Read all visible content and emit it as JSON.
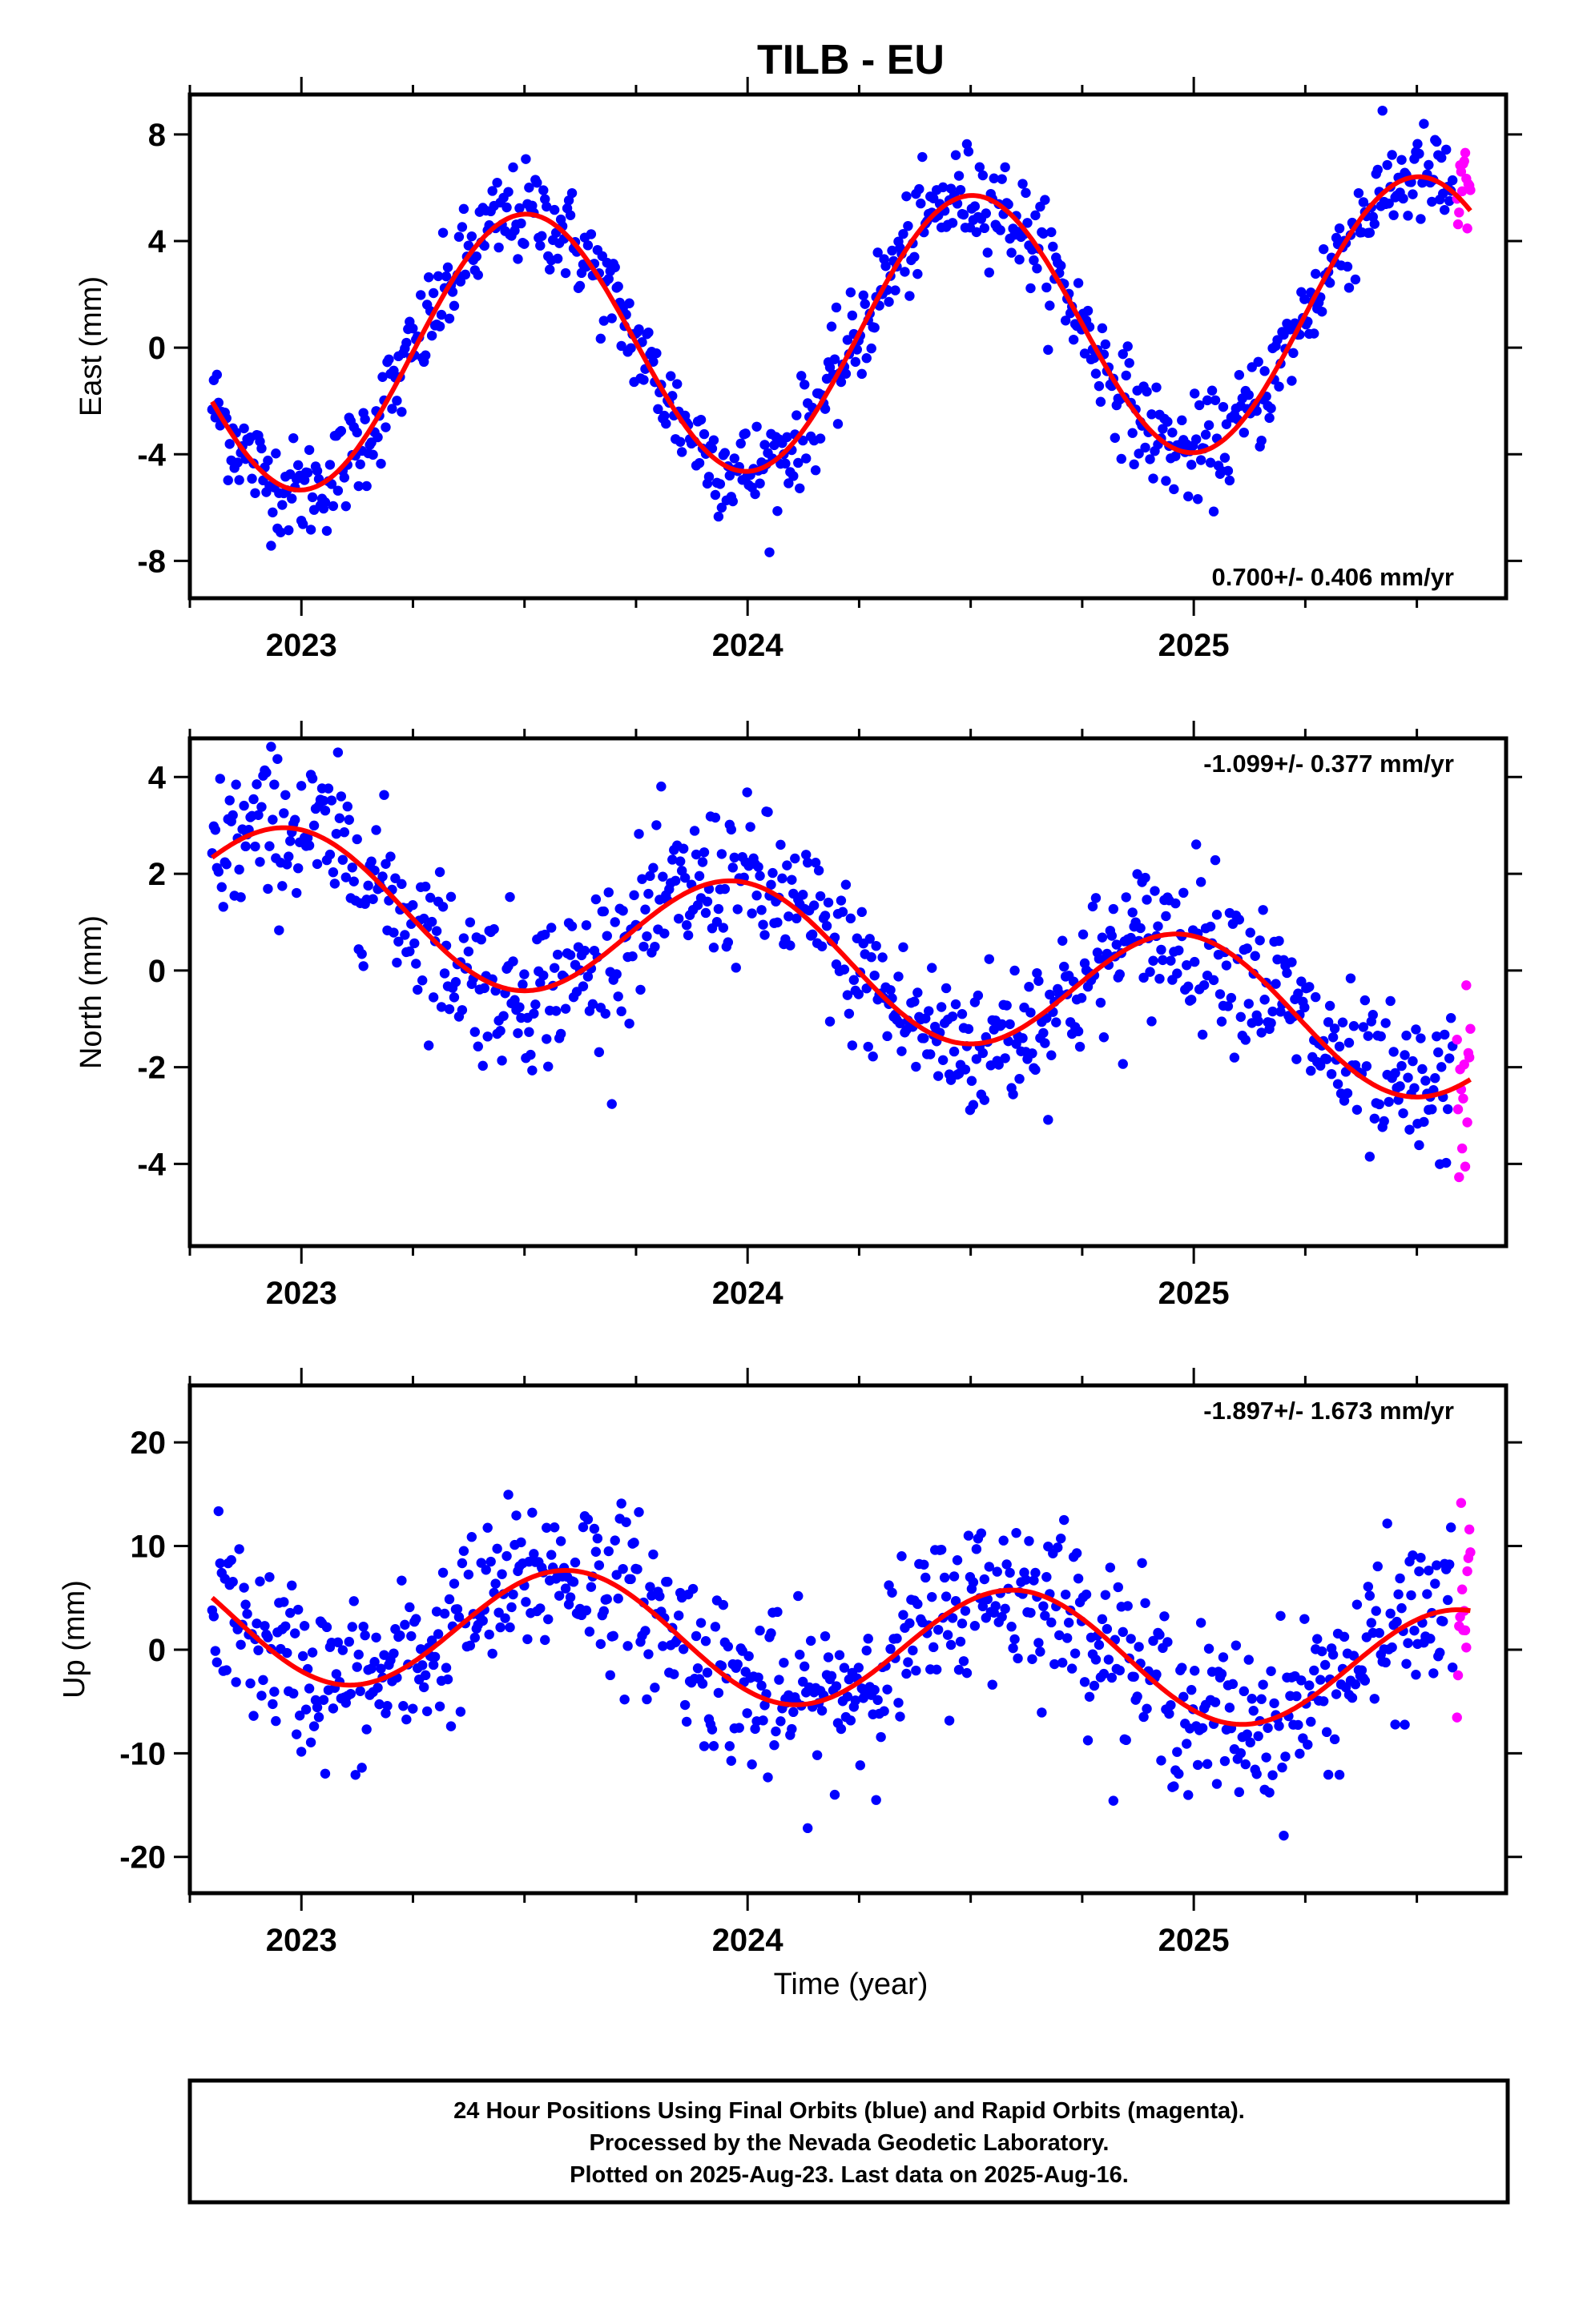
{
  "title": "TILB - EU",
  "x_axis_label": "Time (year)",
  "footer_lines": [
    "24 Hour Positions Using Final Orbits (blue) and Rapid Orbits (magenta).",
    "Processed by the Nevada Geodetic Laboratory.",
    "Plotted on 2025-Aug-23. Last data on 2025-Aug-16."
  ],
  "colors": {
    "final_orbits": "#0000ff",
    "rapid_orbits": "#ff00ff",
    "fit": "#ff0000",
    "frame": "#000000"
  },
  "chart_data": [
    {
      "type": "scatter",
      "ylabel": "East (mm)",
      "xlabel": "",
      "xlim": [
        2022.75,
        2025.7
      ],
      "ylim": [
        -9.4,
        9.5
      ],
      "x_ticks": [
        2023,
        2024,
        2025
      ],
      "x_tick_labels": [
        "2023",
        "2024",
        "2025"
      ],
      "y_ticks": [
        -8,
        -4,
        0,
        4,
        8
      ],
      "y_tick_labels": [
        "-8",
        "-4",
        "0",
        "4",
        "8"
      ],
      "rate_label": "0.700+/- 0.406 mm/yr",
      "rate_position": "bottom-right",
      "fit": {
        "rate": 0.7,
        "offset": 0.5,
        "annual_amp": 5.0,
        "annual_peak": 2023.5,
        "semi_amp": 0.0,
        "semi_peak": 2023.0
      },
      "noise_sd": 0.95,
      "series": [
        {
          "name": "Final Orbits",
          "x_start": 2022.8,
          "x_end": 2025.58,
          "count": 780,
          "color": "#0000ff"
        },
        {
          "name": "Rapid Orbits",
          "x_start": 2025.59,
          "x_end": 2025.62,
          "count": 14,
          "color": "#ff00ff"
        },
        {
          "name": "Fit",
          "color": "#ff0000"
        }
      ]
    },
    {
      "type": "scatter",
      "ylabel": "North (mm)",
      "xlabel": "",
      "xlim": [
        2022.75,
        2025.7
      ],
      "ylim": [
        -5.7,
        4.8
      ],
      "x_ticks": [
        2023,
        2024,
        2025
      ],
      "x_tick_labels": [
        "2023",
        "2024",
        "2025"
      ],
      "y_ticks": [
        -4,
        -2,
        0,
        2,
        4
      ],
      "y_tick_labels": [
        "-4",
        "-2",
        "0",
        "2",
        "4"
      ],
      "rate_label": "-1.099+/- 0.377 mm/yr",
      "rate_position": "top-right",
      "fit": {
        "rate": -1.099,
        "offset": 0.2,
        "annual_amp": 1.4,
        "annual_peak": 2022.98,
        "semi_amp": 0.0,
        "semi_peak": 2023.0
      },
      "noise_sd": 0.8,
      "series": [
        {
          "name": "Final Orbits",
          "x_start": 2022.8,
          "x_end": 2025.58,
          "count": 780,
          "color": "#0000ff"
        },
        {
          "name": "Rapid Orbits",
          "x_start": 2025.59,
          "x_end": 2025.62,
          "count": 14,
          "color": "#ff00ff"
        },
        {
          "name": "Fit",
          "color": "#ff0000"
        }
      ]
    },
    {
      "type": "scatter",
      "ylabel": "Up (mm)",
      "xlabel": "Time (year)",
      "xlim": [
        2022.75,
        2025.7
      ],
      "ylim": [
        -23.5,
        25.5
      ],
      "x_ticks": [
        2023,
        2024,
        2025
      ],
      "x_tick_labels": [
        "2023",
        "2024",
        "2025"
      ],
      "y_ticks": [
        -20,
        -10,
        0,
        10,
        20
      ],
      "y_tick_labels": [
        "-20",
        "-10",
        "0",
        "10",
        "20"
      ],
      "rate_label": "-1.897+/- 1.673 mm/yr",
      "rate_position": "top-right",
      "fit": {
        "rate": -1.897,
        "offset": 0.5,
        "annual_amp": 6.0,
        "annual_peak": 2023.6,
        "semi_amp": 0.0,
        "semi_peak": 2023.0
      },
      "noise_sd": 4.0,
      "series": [
        {
          "name": "Final Orbits",
          "x_start": 2022.8,
          "x_end": 2025.58,
          "count": 780,
          "color": "#0000ff"
        },
        {
          "name": "Rapid Orbits",
          "x_start": 2025.59,
          "x_end": 2025.62,
          "count": 14,
          "color": "#ff00ff"
        },
        {
          "name": "Fit",
          "color": "#ff0000"
        }
      ]
    }
  ]
}
